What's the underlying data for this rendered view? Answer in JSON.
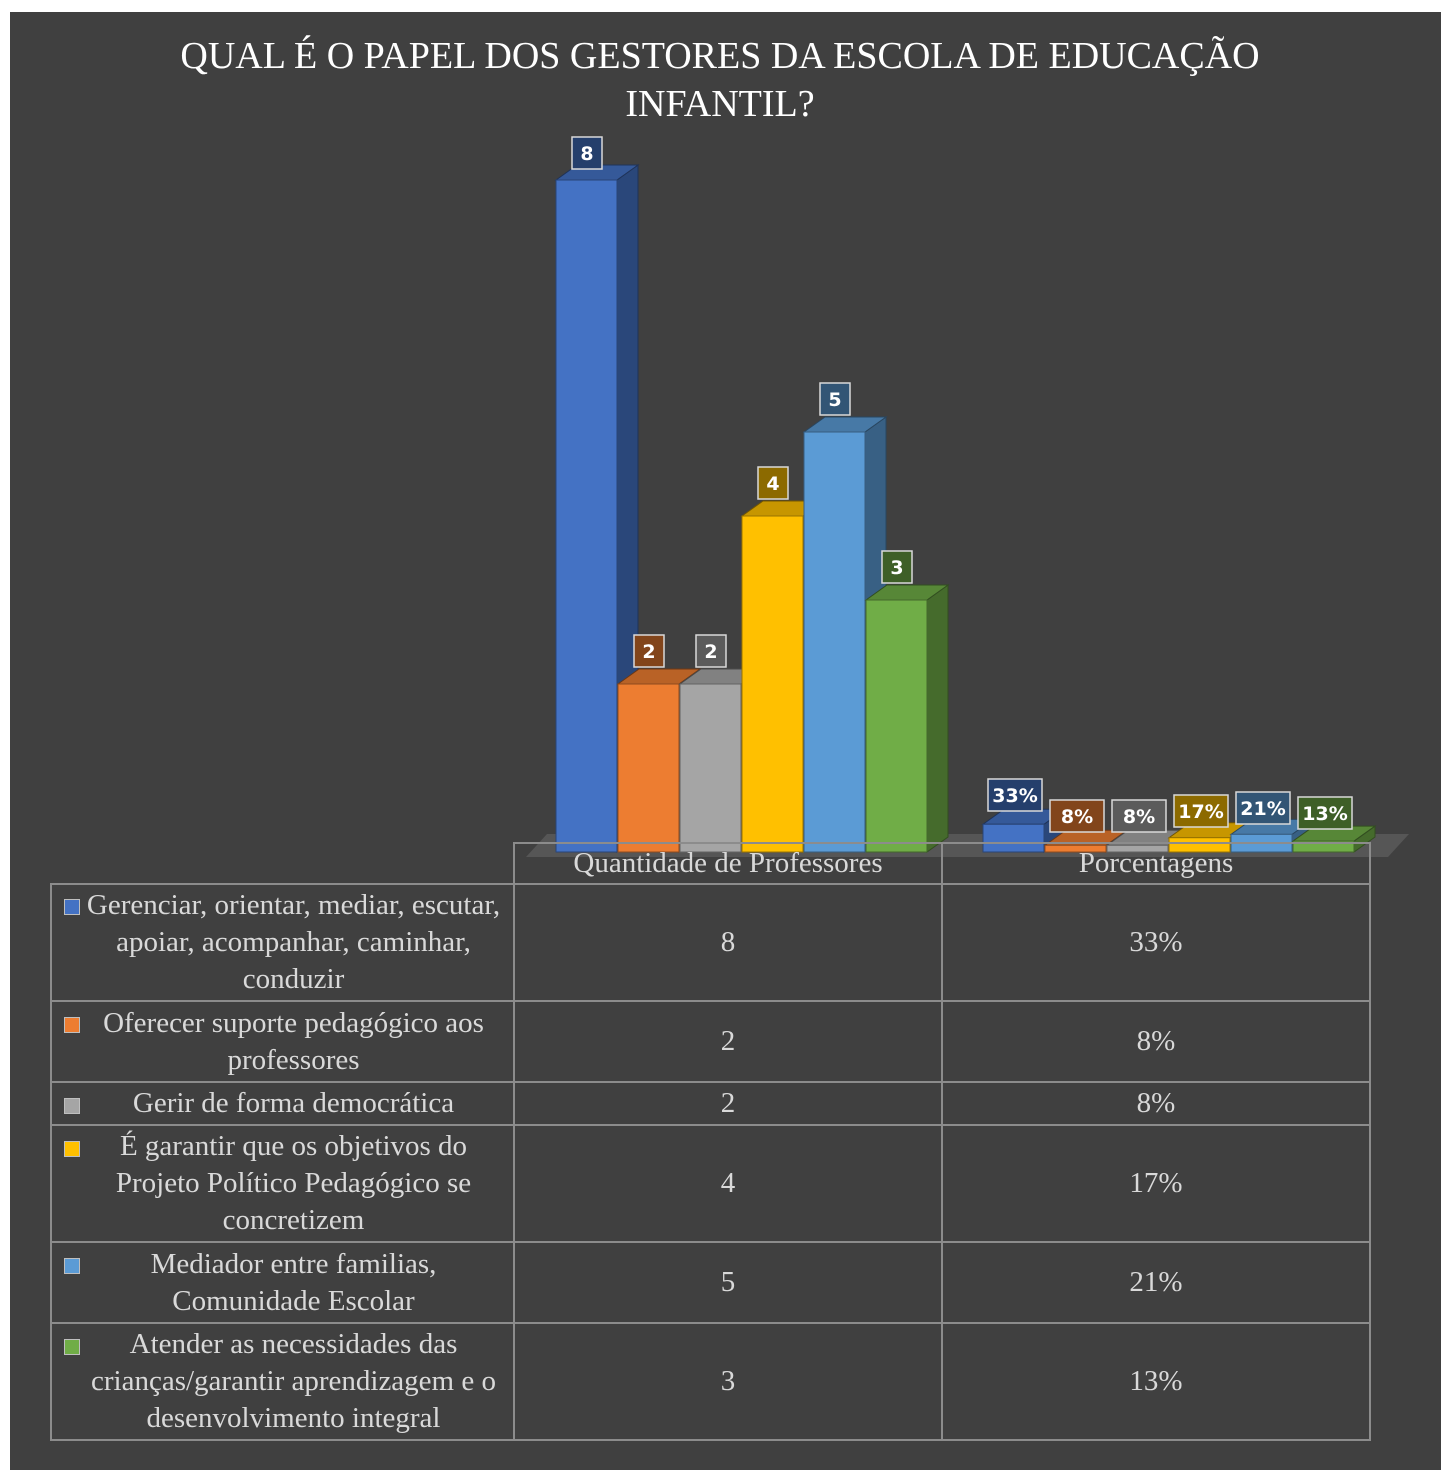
{
  "chart_data": {
    "type": "bar",
    "title": "QUAL É O PAPEL DOS GESTORES DA ESCOLA DE EDUCAÇÃO INFANTIL?",
    "categories": [
      "Quantidade de Professores",
      "Porcentagens"
    ],
    "ylim": [
      0,
      8
    ],
    "grid": false,
    "legend": "table-below",
    "three_d": true,
    "series": [
      {
        "name": "Gerenciar, orientar, mediar, escutar, apoiar, acompanhar, caminhar, conduzir",
        "values": [
          8,
          0.33
        ],
        "labels": [
          "8",
          "33%"
        ],
        "color": "#4472C4"
      },
      {
        "name": "Oferecer suporte pedagógico aos professores",
        "values": [
          2,
          0.08
        ],
        "labels": [
          "2",
          "8%"
        ],
        "color": "#ED7D31"
      },
      {
        "name": "Gerir de forma democrática",
        "values": [
          2,
          0.08
        ],
        "labels": [
          "2",
          "8%"
        ],
        "color": "#A5A5A5"
      },
      {
        "name": "É garantir que os objetivos do Projeto Político Pedagógico se concretizem",
        "values": [
          4,
          0.17
        ],
        "labels": [
          "4",
          "17%"
        ],
        "color": "#FFC000"
      },
      {
        "name": "Mediador entre familias, Comunidade Escolar",
        "values": [
          5,
          0.21
        ],
        "labels": [
          "5",
          "21%"
        ],
        "color": "#5B9BD5"
      },
      {
        "name": "Atender as necessidades das crianças/garantir aprendizagem e o desenvolvimento integral",
        "values": [
          3,
          0.13
        ],
        "labels": [
          "3",
          "13%"
        ],
        "color": "#70AD47"
      }
    ]
  }
}
